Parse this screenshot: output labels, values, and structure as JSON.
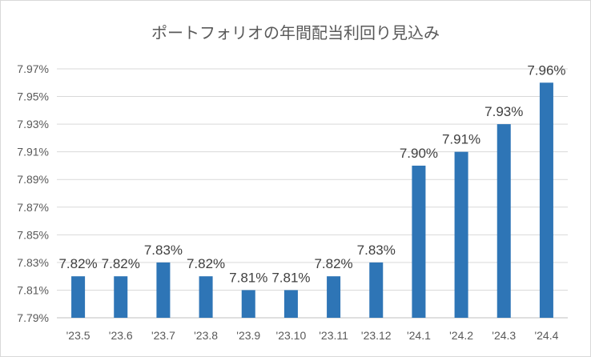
{
  "chart_data": {
    "type": "bar",
    "title": "ポートフォリオの年間配当利回り見込み",
    "xlabel": "",
    "ylabel": "",
    "categories": [
      "'23.5",
      "'23.6",
      "'23.7",
      "'23.8",
      "'23.9",
      "'23.10",
      "'23.11",
      "'23.12",
      "'24.1",
      "'24.2",
      "'24.3",
      "'24.4"
    ],
    "values": [
      7.82,
      7.82,
      7.83,
      7.82,
      7.81,
      7.81,
      7.82,
      7.83,
      7.9,
      7.91,
      7.93,
      7.96
    ],
    "data_labels": [
      "7.82%",
      "7.82%",
      "7.83%",
      "7.82%",
      "7.81%",
      "7.81%",
      "7.82%",
      "7.83%",
      "7.90%",
      "7.91%",
      "7.93%",
      "7.96%"
    ],
    "ylim": [
      7.79,
      7.97
    ],
    "yticks": [
      7.79,
      7.81,
      7.83,
      7.85,
      7.87,
      7.89,
      7.91,
      7.93,
      7.95,
      7.97
    ],
    "ytick_labels": [
      "7.79%",
      "7.81%",
      "7.83%",
      "7.85%",
      "7.87%",
      "7.89%",
      "7.91%",
      "7.93%",
      "7.95%",
      "7.97%"
    ],
    "grid": true,
    "legend": "none",
    "bar_color": "#2e75b6"
  }
}
